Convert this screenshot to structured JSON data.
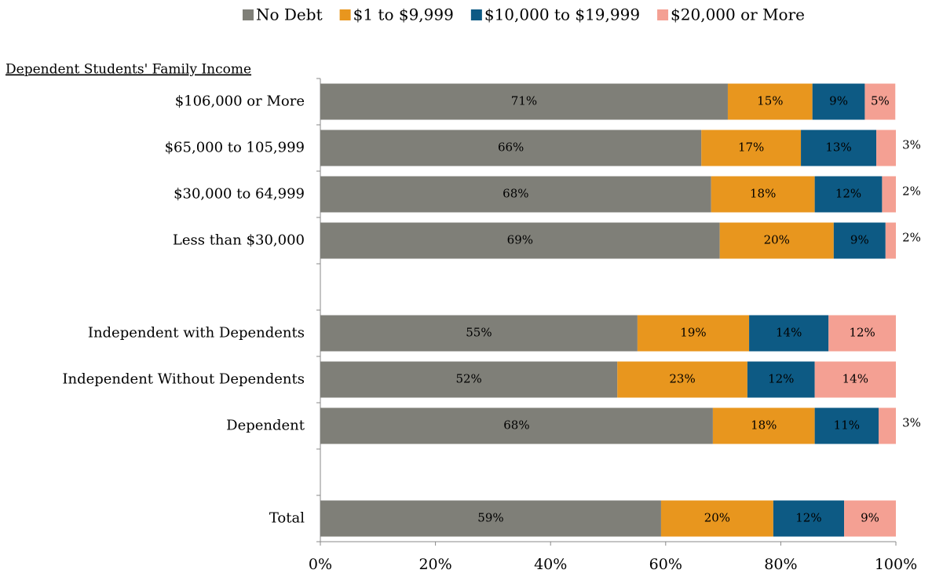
{
  "chart_data": {
    "type": "stacked-barh",
    "annotation": "Dependent Students' Family Income",
    "categories": [
      "$106,000 or More",
      "$65,000 to 105,999",
      "$30,000 to 64,999",
      "Less than $30,000",
      null,
      "Independent with Dependents",
      "Independent Without Dependents",
      "Dependent",
      null,
      "Total"
    ],
    "series": [
      {
        "name": "No Debt",
        "color": "#7f7f78",
        "values": [
          70.8,
          66.2,
          67.9,
          69.4,
          null,
          55.1,
          51.6,
          68.2,
          null,
          59.2
        ],
        "value_labels": [
          "71%",
          "66%",
          "68%",
          "69%",
          null,
          "55%",
          "52%",
          "68%",
          null,
          "59%"
        ]
      },
      {
        "name": "$1 to $9,999",
        "color": "#e8961e",
        "values": [
          14.7,
          17.3,
          18.0,
          19.8,
          null,
          19.4,
          22.6,
          17.7,
          null,
          19.5
        ],
        "value_labels": [
          "15%",
          "17%",
          "18%",
          "20%",
          null,
          "19%",
          "23%",
          "18%",
          null,
          "20%"
        ]
      },
      {
        "name": "$10,000 to $19,999",
        "color": "#0d5a84",
        "values": [
          9.1,
          13.1,
          11.7,
          9.0,
          null,
          13.8,
          11.7,
          11.1,
          null,
          12.3
        ],
        "value_labels": [
          "9%",
          "13%",
          "12%",
          "9%",
          null,
          "14%",
          "12%",
          "11%",
          null,
          "12%"
        ]
      },
      {
        "name": "$20,000 or More",
        "color": "#f4a093",
        "values": [
          5.3,
          3.4,
          2.4,
          1.8,
          null,
          11.7,
          14.1,
          3.0,
          null,
          9.0
        ],
        "value_labels": [
          "5%",
          "3%",
          "2%",
          "2%",
          null,
          "12%",
          "14%",
          "3%",
          null,
          "9%"
        ]
      }
    ],
    "xlim": [
      0,
      100
    ],
    "xticks": [
      {
        "value": 0,
        "label": "0%"
      },
      {
        "value": 20,
        "label": "20%"
      },
      {
        "value": 40,
        "label": "40%"
      },
      {
        "value": 60,
        "label": "60%"
      },
      {
        "value": 80,
        "label": "80%"
      },
      {
        "value": 100,
        "label": "100%"
      }
    ],
    "legend": "top"
  }
}
